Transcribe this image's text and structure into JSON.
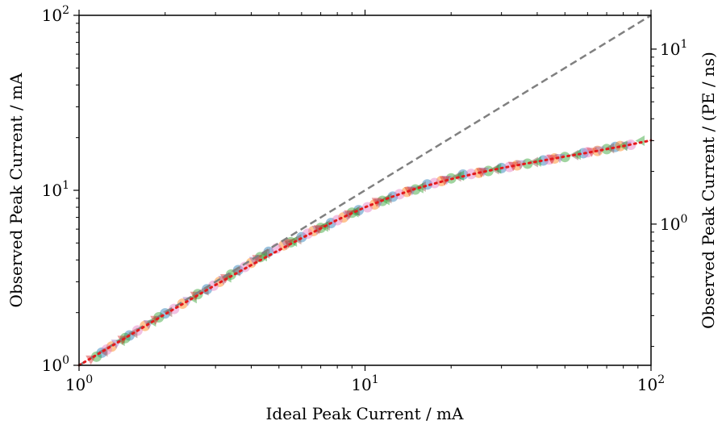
{
  "chart_data": {
    "type": "scatter",
    "xlabel": "Ideal Peak Current / mA",
    "ylabel": "Observed Peak Current / mA",
    "ylabel_right": "Observed Peak Current / (PE / ns)",
    "x_scale": "log",
    "y_scale": "log",
    "xlim": [
      1,
      100
    ],
    "ylim": [
      1,
      100
    ],
    "ylim_right": [
      0.156,
      15.6
    ],
    "x_ticks": [
      {
        "value": 1,
        "base": "10",
        "exp": "0"
      },
      {
        "value": 10,
        "base": "10",
        "exp": "1"
      },
      {
        "value": 100,
        "base": "10",
        "exp": "2"
      }
    ],
    "y_ticks": [
      {
        "value": 1,
        "base": "10",
        "exp": "0"
      },
      {
        "value": 10,
        "base": "10",
        "exp": "1"
      },
      {
        "value": 100,
        "base": "10",
        "exp": "2"
      }
    ],
    "y_ticks_right": [
      {
        "value": 1,
        "base": "10",
        "exp": "0"
      },
      {
        "value": 10,
        "base": "10",
        "exp": "1"
      }
    ],
    "grid": false,
    "legend": "none",
    "reference_line": {
      "style": "dashed",
      "color": "#808080",
      "x": [
        1,
        100
      ],
      "y": [
        1,
        100
      ]
    },
    "fit_line": {
      "style": "dotted",
      "color": "#e41a1c",
      "x": [
        1,
        1.5,
        2,
        3,
        4,
        5,
        6,
        7,
        8,
        10,
        12,
        15,
        20,
        25,
        30,
        40,
        50,
        60,
        70,
        80,
        100
      ],
      "y": [
        1,
        1.48,
        1.96,
        2.88,
        3.74,
        4.55,
        5.33,
        6.06,
        6.78,
        8.0,
        9.0,
        10.2,
        11.6,
        12.6,
        13.4,
        14.6,
        15.6,
        16.4,
        17.2,
        17.9,
        19.3
      ]
    },
    "series": [
      {
        "marker": "circle",
        "color": "#1f77b4",
        "points": [
          [
            1.2,
            1.18
          ],
          [
            1.5,
            1.48
          ],
          [
            2.0,
            1.98
          ],
          [
            2.8,
            2.72
          ],
          [
            3.6,
            3.5
          ],
          [
            4.6,
            4.45
          ],
          [
            6.0,
            5.4
          ],
          [
            7.6,
            6.5
          ],
          [
            9.5,
            7.7
          ],
          [
            12.5,
            9.2
          ],
          [
            16.5,
            10.8
          ],
          [
            22,
            12.3
          ],
          [
            30,
            13.4
          ],
          [
            42,
            14.8
          ],
          [
            58,
            16.3
          ],
          [
            75,
            17.7
          ]
        ]
      },
      {
        "marker": "circle",
        "color": "#ff7f0e",
        "points": [
          [
            1.3,
            1.28
          ],
          [
            1.7,
            1.68
          ],
          [
            2.3,
            2.25
          ],
          [
            3.1,
            3.0
          ],
          [
            4.0,
            3.85
          ],
          [
            5.2,
            4.85
          ],
          [
            6.6,
            5.85
          ],
          [
            8.4,
            7.0
          ],
          [
            10.8,
            8.3
          ],
          [
            14,
            9.8
          ],
          [
            18.5,
            11.3
          ],
          [
            25,
            12.6
          ],
          [
            34,
            13.9
          ],
          [
            46,
            15.2
          ],
          [
            65,
            16.8
          ],
          [
            78,
            17.9
          ]
        ]
      },
      {
        "marker": "circle",
        "color": "#2ca02c",
        "points": [
          [
            1.15,
            1.12
          ],
          [
            1.45,
            1.43
          ],
          [
            1.9,
            1.88
          ],
          [
            2.6,
            2.55
          ],
          [
            3.4,
            3.3
          ],
          [
            4.3,
            4.15
          ],
          [
            5.5,
            5.05
          ],
          [
            7.0,
            6.1
          ],
          [
            9.0,
            7.45
          ],
          [
            11.5,
            8.7
          ],
          [
            15,
            10.1
          ],
          [
            20,
            11.7
          ],
          [
            27,
            12.9
          ],
          [
            37,
            14.2
          ],
          [
            50,
            15.5
          ],
          [
            70,
            17.2
          ]
        ]
      },
      {
        "marker": "circle",
        "color": "#e377c2",
        "points": [
          [
            1.25,
            1.23
          ],
          [
            1.6,
            1.58
          ],
          [
            2.15,
            2.1
          ],
          [
            2.95,
            2.85
          ],
          [
            3.8,
            3.65
          ],
          [
            4.9,
            4.65
          ],
          [
            6.3,
            5.65
          ],
          [
            8.0,
            6.75
          ],
          [
            10.2,
            8.0
          ],
          [
            13.2,
            9.5
          ],
          [
            17.5,
            11.0
          ],
          [
            23.5,
            12.4
          ],
          [
            32,
            13.6
          ],
          [
            44,
            15.0
          ],
          [
            60,
            16.5
          ],
          [
            85,
            18.2
          ]
        ]
      },
      {
        "marker": "triangle-down",
        "color": "#9467bd",
        "points": [
          [
            1.35,
            1.33
          ],
          [
            1.75,
            1.72
          ],
          [
            2.4,
            2.33
          ],
          [
            3.2,
            3.08
          ],
          [
            4.1,
            3.95
          ],
          [
            5.3,
            4.9
          ],
          [
            6.8,
            5.95
          ],
          [
            8.7,
            7.2
          ],
          [
            11.2,
            8.5
          ],
          [
            14.6,
            10.0
          ],
          [
            19.3,
            11.5
          ],
          [
            26,
            12.8
          ],
          [
            35,
            14.1
          ],
          [
            48,
            15.3
          ],
          [
            66,
            16.9
          ],
          [
            82,
            18.0
          ]
        ]
      },
      {
        "marker": "triangle-left",
        "color": "#8c564b",
        "points": [
          [
            1.22,
            1.2
          ],
          [
            1.55,
            1.53
          ],
          [
            2.05,
            2.02
          ],
          [
            2.75,
            2.68
          ],
          [
            3.55,
            3.45
          ],
          [
            4.5,
            4.35
          ],
          [
            5.8,
            5.25
          ],
          [
            7.3,
            6.3
          ],
          [
            9.3,
            7.6
          ],
          [
            12,
            9.0
          ],
          [
            15.8,
            10.5
          ],
          [
            21,
            12.0
          ],
          [
            28.5,
            13.2
          ],
          [
            39,
            14.5
          ],
          [
            54,
            15.9
          ],
          [
            72,
            17.4
          ]
        ]
      },
      {
        "marker": "triangle-left",
        "color": "#2ca02c",
        "points": [
          [
            1.4,
            1.38
          ],
          [
            1.8,
            1.78
          ],
          [
            2.5,
            2.42
          ],
          [
            3.3,
            3.18
          ],
          [
            4.4,
            4.2
          ],
          [
            5.6,
            5.1
          ],
          [
            7.2,
            6.2
          ],
          [
            9.2,
            7.5
          ],
          [
            11.8,
            8.8
          ],
          [
            15.5,
            10.3
          ],
          [
            21.5,
            12.1
          ],
          [
            29,
            13.3
          ],
          [
            40,
            14.6
          ],
          [
            55,
            16.0
          ],
          [
            80,
            18.0
          ],
          [
            92,
            19.2
          ]
        ]
      },
      {
        "marker": "triangle-down",
        "color": "#d62728",
        "points": [
          [
            1.1,
            1.08
          ],
          [
            1.42,
            1.4
          ],
          [
            1.85,
            1.82
          ],
          [
            2.55,
            2.5
          ],
          [
            3.25,
            3.15
          ],
          [
            4.2,
            4.05
          ],
          [
            5.4,
            5.0
          ],
          [
            6.9,
            6.0
          ],
          [
            8.8,
            7.3
          ],
          [
            11,
            8.6
          ],
          [
            14.3,
            9.9
          ],
          [
            19,
            11.4
          ],
          [
            25.5,
            12.7
          ],
          [
            33,
            13.8
          ],
          [
            45,
            15.1
          ],
          [
            62,
            16.6
          ]
        ]
      }
    ]
  }
}
